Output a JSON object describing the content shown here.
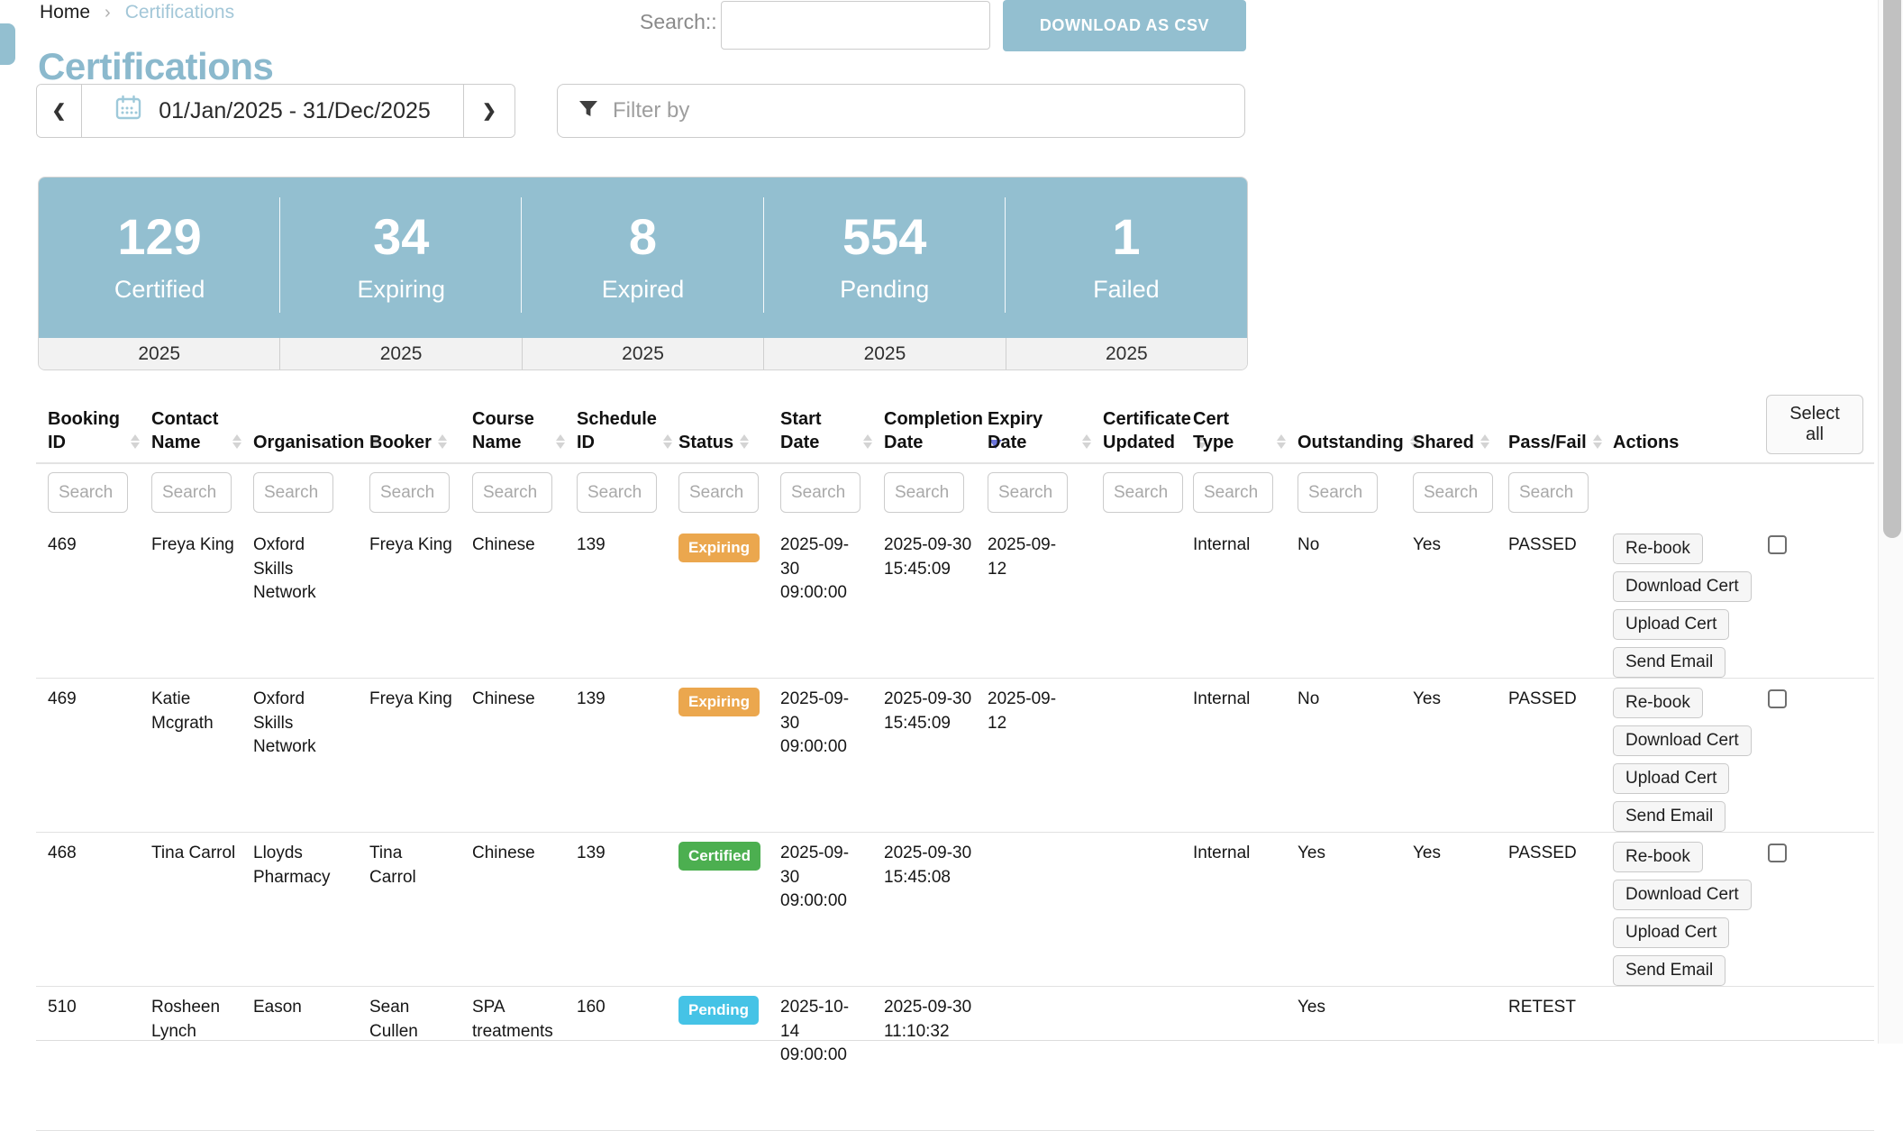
{
  "page": {
    "breadcrumb": {
      "home": "Home",
      "separator": "›",
      "current": "Certifications"
    },
    "title": "Certifications",
    "search_label": "Search::",
    "search_value": "",
    "download_button": "DOWNLOAD AS CSV",
    "date_range": "01/Jan/2025 - 31/Dec/2025",
    "filter_placeholder": "Filter by"
  },
  "stats": {
    "items": [
      {
        "value": "129",
        "label": "Certified",
        "year": "2025"
      },
      {
        "value": "34",
        "label": "Expiring",
        "year": "2025"
      },
      {
        "value": "8",
        "label": "Expired",
        "year": "2025"
      },
      {
        "value": "554",
        "label": "Pending",
        "year": "2025"
      },
      {
        "value": "1",
        "label": "Failed",
        "year": "2025"
      }
    ]
  },
  "table": {
    "select_all_label": "Select all",
    "search_placeholder": "Search",
    "columns": [
      {
        "key": "booking_id",
        "label": "Booking ID",
        "sortable": true,
        "search": true
      },
      {
        "key": "contact_name",
        "label": "Contact Name",
        "sortable": true,
        "search": true
      },
      {
        "key": "organisation",
        "label": "Organisation",
        "sortable": true,
        "search": true
      },
      {
        "key": "booker",
        "label": "Booker",
        "sortable": true,
        "search": true
      },
      {
        "key": "course_name",
        "label": "Course Name",
        "sortable": true,
        "search": true
      },
      {
        "key": "schedule_id",
        "label": "Schedule ID",
        "sortable": true,
        "search": true
      },
      {
        "key": "status",
        "label": "Status",
        "sortable": true,
        "search": true
      },
      {
        "key": "start_date",
        "label": "Start Date",
        "sortable": true,
        "search": true
      },
      {
        "key": "completion_date",
        "label": "Completion Date",
        "sortable": true,
        "sorted": "desc",
        "search": true
      },
      {
        "key": "expiry_date",
        "label": "Expiry Date",
        "sortable": true,
        "search": true
      },
      {
        "key": "certificate_updated",
        "label": "Certificate Updated",
        "sortable": true,
        "search": true
      },
      {
        "key": "cert_type",
        "label": "Cert Type",
        "sortable": true,
        "search": true
      },
      {
        "key": "outstanding",
        "label": "Outstanding",
        "sortable": true,
        "search": true
      },
      {
        "key": "shared",
        "label": "Shared",
        "sortable": true,
        "search": true
      },
      {
        "key": "pass_fail",
        "label": "Pass/Fail",
        "sortable": true,
        "search": true
      },
      {
        "key": "actions",
        "label": "Actions",
        "sortable": false,
        "search": false
      }
    ],
    "rows": [
      {
        "booking_id": "469",
        "contact_name": "Freya King",
        "organisation": "Oxford Skills Network",
        "booker": "Freya King",
        "course_name": "Chinese",
        "schedule_id": "139",
        "status": "Expiring",
        "start_date": "2025-09-30 09:00:00",
        "completion_date": "2025-09-30 15:45:09",
        "expiry_date": "2025-09-12",
        "certificate_updated": "",
        "cert_type": "Internal",
        "outstanding": "No",
        "shared": "Yes",
        "pass_fail": "PASSED",
        "actions": [
          "Re-book",
          "Download Cert",
          "Upload Cert",
          "Send Email"
        ],
        "checkbox": true
      },
      {
        "booking_id": "469",
        "contact_name": "Katie Mcgrath",
        "organisation": "Oxford Skills Network",
        "booker": "Freya King",
        "course_name": "Chinese",
        "schedule_id": "139",
        "status": "Expiring",
        "start_date": "2025-09-30 09:00:00",
        "completion_date": "2025-09-30 15:45:09",
        "expiry_date": "2025-09-12",
        "certificate_updated": "",
        "cert_type": "Internal",
        "outstanding": "No",
        "shared": "Yes",
        "pass_fail": "PASSED",
        "actions": [
          "Re-book",
          "Download Cert",
          "Upload Cert",
          "Send Email"
        ],
        "checkbox": true
      },
      {
        "booking_id": "468",
        "contact_name": "Tina Carrol",
        "organisation": "Lloyds Pharmacy",
        "booker": "Tina Carrol",
        "course_name": "Chinese",
        "schedule_id": "139",
        "status": "Certified",
        "start_date": "2025-09-30 09:00:00",
        "completion_date": "2025-09-30 15:45:08",
        "expiry_date": "",
        "certificate_updated": "",
        "cert_type": "Internal",
        "outstanding": "Yes",
        "shared": "Yes",
        "pass_fail": "PASSED",
        "actions": [
          "Re-book",
          "Download Cert",
          "Upload Cert",
          "Send Email"
        ],
        "checkbox": true
      },
      {
        "booking_id": "510",
        "contact_name": "Rosheen Lynch",
        "organisation": "Eason",
        "booker": "Sean Cullen",
        "course_name": "SPA treatments",
        "schedule_id": "160",
        "status": "Pending",
        "start_date": "2025-10-14 09:00:00",
        "completion_date": "2025-09-30 11:10:32",
        "expiry_date": "",
        "certificate_updated": "",
        "cert_type": "",
        "outstanding": "Yes",
        "shared": "",
        "pass_fail": "RETEST",
        "actions": [],
        "checkbox": false
      }
    ]
  },
  "colors": {
    "accent_blue": "#93BFD0",
    "title_blue": "#8BB9CD",
    "breadcrumb_link": "#A3C7D8",
    "sort_active": "#6B74DB",
    "status": {
      "Expiring": "#EBA74E",
      "Certified": "#4CAF50",
      "Pending": "#45C3E6"
    }
  }
}
